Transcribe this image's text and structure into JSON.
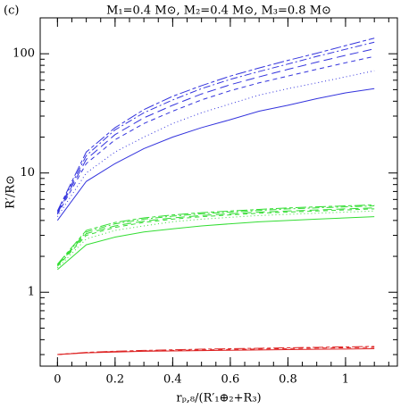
{
  "chart_data": {
    "type": "line",
    "panel_label": "(c)",
    "title": "M₁=0.4 M⊙, M₂=0.4 M⊙, M₃=0.8 M⊙",
    "x_label": "rₚ,₈/(R′₁⊕₂+R₃)",
    "y_label": "R′/R⊙",
    "log_y": true,
    "xlim": [
      -0.06,
      1.18
    ],
    "ylim": [
      0.24,
      200
    ],
    "xticks": [
      0,
      0.2,
      0.4,
      0.6,
      0.8,
      1
    ],
    "yticks": [
      1,
      10,
      100
    ],
    "x": [
      0,
      0.1,
      0.2,
      0.3,
      0.4,
      0.5,
      0.6,
      0.7,
      0.8,
      0.9,
      1.0,
      1.1
    ],
    "series": [
      {
        "color": "#3333dd",
        "dash": "none",
        "values": [
          4.0,
          8.5,
          12,
          16,
          20,
          24,
          28,
          33,
          37,
          42,
          47,
          51
        ]
      },
      {
        "color": "#3333dd",
        "dash": "1,3",
        "values": [
          4.3,
          10,
          15,
          20,
          26,
          32,
          38,
          45,
          51,
          57,
          64,
          72
        ]
      },
      {
        "color": "#3333dd",
        "dash": "5,4",
        "values": [
          4.5,
          12,
          19,
          26,
          33,
          41,
          49,
          57,
          65,
          74,
          84,
          95
        ]
      },
      {
        "color": "#3333dd",
        "dash": "10,5",
        "values": [
          4.6,
          13,
          21,
          29,
          37,
          46,
          55,
          64,
          74,
          85,
          97,
          110
        ]
      },
      {
        "color": "#3333dd",
        "dash": "8,3,2,3",
        "values": [
          4.7,
          14,
          23,
          32,
          41,
          51,
          61,
          71,
          82,
          95,
          109,
          125
        ]
      },
      {
        "color": "#3333dd",
        "dash": "12,3,4,3",
        "values": [
          4.8,
          15,
          24,
          34,
          44,
          54,
          65,
          76,
          88,
          101,
          117,
          135
        ]
      },
      {
        "color": "#33dd33",
        "dash": "none",
        "values": [
          1.55,
          2.5,
          2.9,
          3.2,
          3.4,
          3.6,
          3.75,
          3.9,
          4.0,
          4.1,
          4.2,
          4.3
        ]
      },
      {
        "color": "#33dd33",
        "dash": "1,3",
        "values": [
          1.6,
          2.8,
          3.3,
          3.6,
          3.9,
          4.1,
          4.25,
          4.4,
          4.5,
          4.6,
          4.7,
          4.8
        ]
      },
      {
        "color": "#33dd33",
        "dash": "5,4",
        "values": [
          1.65,
          3.0,
          3.5,
          3.85,
          4.1,
          4.3,
          4.45,
          4.6,
          4.7,
          4.8,
          4.9,
          5.0
        ]
      },
      {
        "color": "#33dd33",
        "dash": "10,5",
        "values": [
          1.68,
          3.1,
          3.6,
          3.95,
          4.2,
          4.4,
          4.55,
          4.7,
          4.8,
          4.9,
          5.0,
          5.1
        ]
      },
      {
        "color": "#33dd33",
        "dash": "8,3,2,3",
        "values": [
          1.7,
          3.2,
          3.75,
          4.1,
          4.35,
          4.55,
          4.7,
          4.85,
          5.0,
          5.1,
          5.2,
          5.3
        ]
      },
      {
        "color": "#33dd33",
        "dash": "12,3,4,3",
        "values": [
          1.72,
          3.3,
          3.85,
          4.2,
          4.45,
          4.65,
          4.8,
          4.95,
          5.1,
          5.2,
          5.3,
          5.4
        ]
      },
      {
        "color": "#dd2222",
        "dash": "none",
        "values": [
          0.3,
          0.31,
          0.315,
          0.32,
          0.322,
          0.324,
          0.326,
          0.328,
          0.33,
          0.332,
          0.334,
          0.336
        ]
      },
      {
        "color": "#dd2222",
        "dash": "5,4",
        "values": [
          0.3,
          0.312,
          0.318,
          0.322,
          0.325,
          0.328,
          0.331,
          0.334,
          0.337,
          0.34,
          0.342,
          0.345
        ]
      },
      {
        "color": "#dd2222",
        "dash": "12,3,4,3",
        "values": [
          0.3,
          0.313,
          0.32,
          0.325,
          0.329,
          0.333,
          0.336,
          0.339,
          0.342,
          0.345,
          0.348,
          0.351
        ]
      }
    ]
  }
}
